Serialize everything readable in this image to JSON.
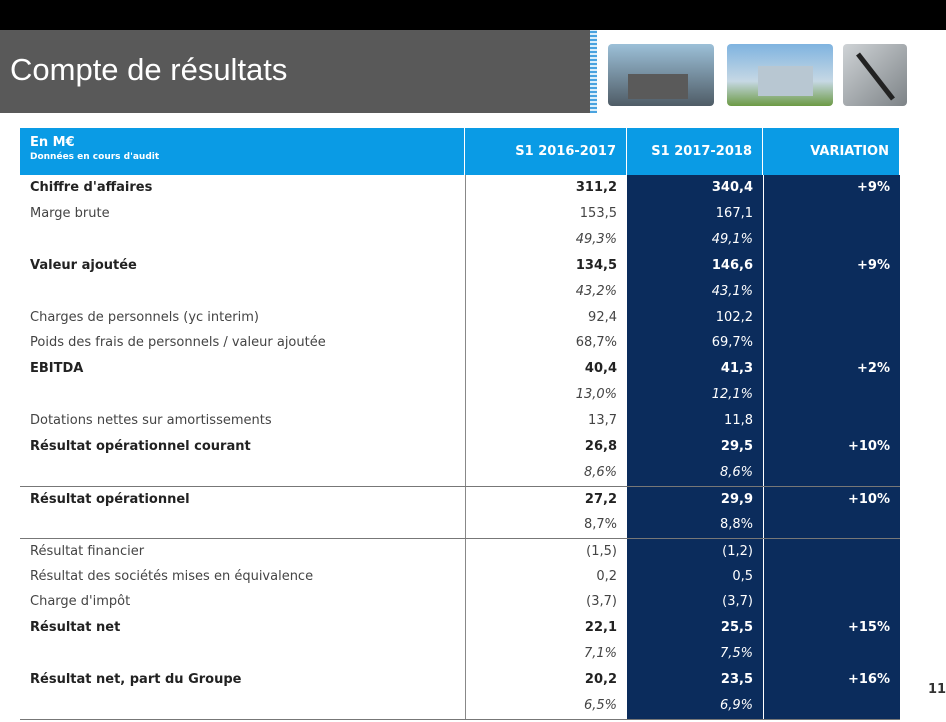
{
  "header": {
    "title": "Compte de résultats"
  },
  "table": {
    "columns": [
      {
        "title": "En M€",
        "subtitle": "Données en cours d'audit"
      },
      {
        "title": "S1 2016-2017"
      },
      {
        "title": "S1 2017-2018"
      },
      {
        "title": "VARIATION"
      }
    ],
    "rows": [
      {
        "style": "bold",
        "cells": [
          "Chiffre d'affaires",
          "311,2",
          "340,4",
          "+9%"
        ]
      },
      {
        "style": "normal",
        "cells": [
          "Marge brute",
          "153,5",
          "167,1",
          null
        ]
      },
      {
        "style": "italic",
        "cells": [
          null,
          "49,3%",
          "49,1%",
          null
        ]
      },
      {
        "style": "bold",
        "cells": [
          "Valeur ajoutée",
          "134,5",
          "146,6",
          "+9%"
        ]
      },
      {
        "style": "italic",
        "cells": [
          null,
          "43,2%",
          "43,1%",
          null
        ]
      },
      {
        "style": "normal",
        "cells": [
          "Charges de personnels (yc interim)",
          "92,4",
          "102,2",
          null
        ]
      },
      {
        "style": "normal",
        "cells": [
          "Poids des frais de personnels / valeur ajoutée",
          "68,7%",
          "69,7%",
          null
        ]
      },
      {
        "style": "bold",
        "cells": [
          "EBITDA",
          "40,4",
          "41,3",
          "+2%"
        ]
      },
      {
        "style": "italic",
        "cells": [
          null,
          "13,0%",
          "12,1%",
          null
        ]
      },
      {
        "style": "normal",
        "cells": [
          "Dotations nettes sur amortissements",
          "13,7",
          "11,8",
          null
        ]
      },
      {
        "style": "bold",
        "cells": [
          "Résultat opérationnel courant",
          "26,8",
          "29,5",
          "+10%"
        ]
      },
      {
        "style": "italic",
        "cells": [
          null,
          "8,6%",
          "8,6%",
          null
        ]
      },
      {
        "style": "bold",
        "separator": true,
        "cells": [
          "Résultat opérationnel",
          "27,2",
          "29,9",
          "+10%"
        ]
      },
      {
        "style": "normal",
        "cells": [
          null,
          "8,7%",
          "8,8%",
          null
        ]
      },
      {
        "style": "normal",
        "separator": true,
        "cells": [
          "Résultat financier",
          "(1,5)",
          "(1,2)",
          null
        ]
      },
      {
        "style": "normal",
        "cells": [
          "Résultat des sociétés mises en équivalence",
          "0,2",
          "0,5",
          null
        ]
      },
      {
        "style": "normal",
        "cells": [
          "Charge d'impôt",
          "(3,7)",
          "(3,7)",
          null
        ]
      },
      {
        "style": "bold",
        "cells": [
          "Résultat net",
          "22,1",
          "25,5",
          "+15%"
        ]
      },
      {
        "style": "italic",
        "cells": [
          null,
          "7,1%",
          "7,5%",
          null
        ]
      },
      {
        "style": "bold",
        "cells": [
          "Résultat net, part du Groupe",
          "20,2",
          "23,5",
          "+16%"
        ]
      },
      {
        "style": "italic",
        "cells": [
          null,
          "6,5%",
          "6,9%",
          null
        ]
      }
    ]
  },
  "footer": {
    "page": "11"
  }
}
